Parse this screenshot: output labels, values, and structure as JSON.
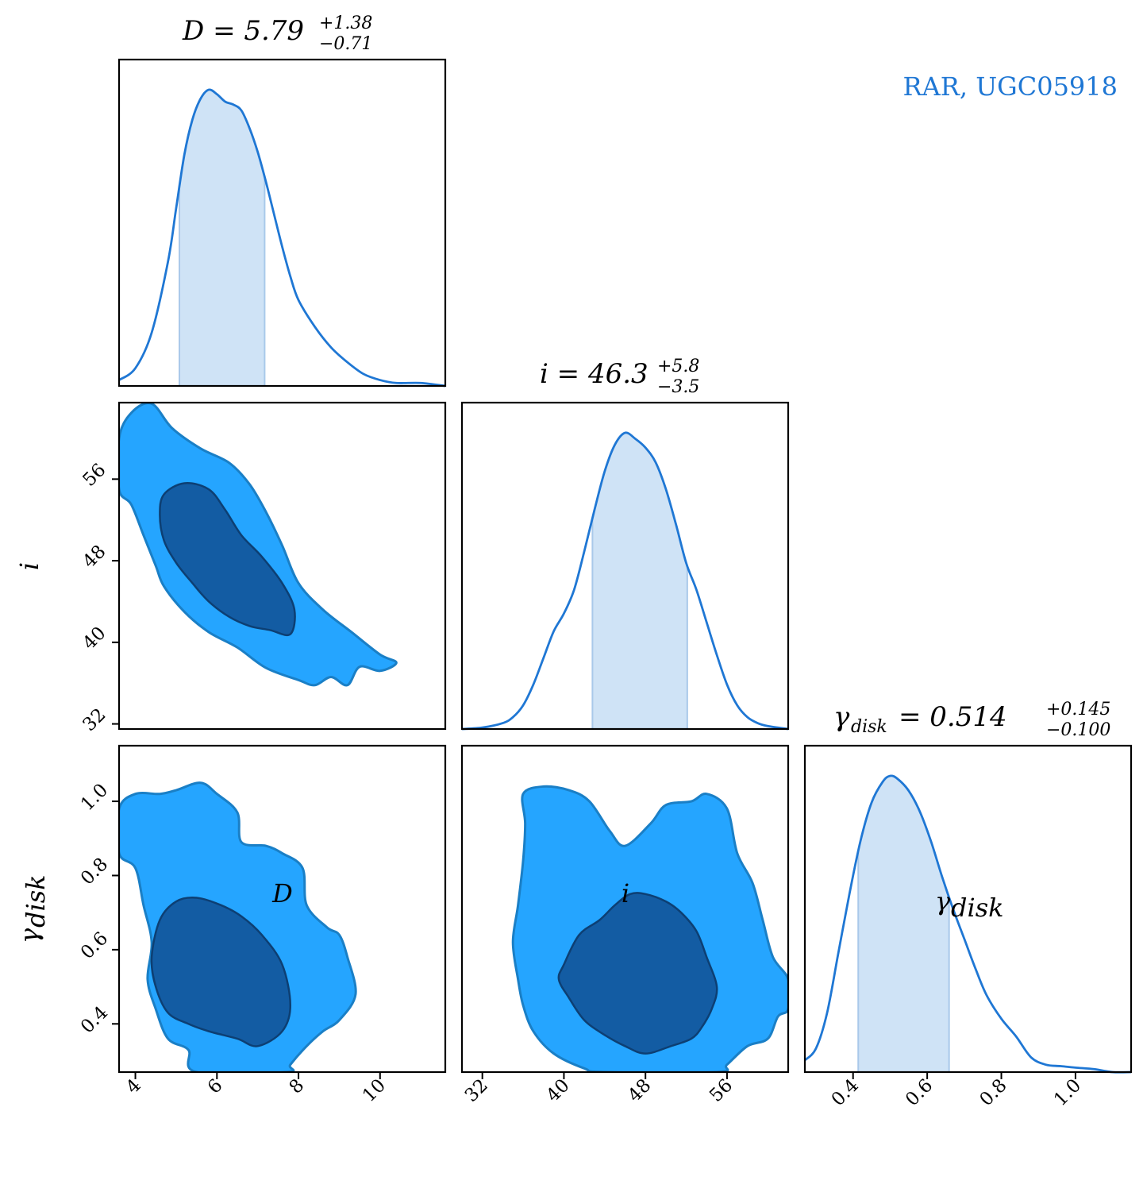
{
  "legend": {
    "text": "RAR, UGC05918",
    "color": "#1f77d4"
  },
  "colors": {
    "curve": "#1f77d4",
    "band": "#cfe3f6",
    "band_edge": "#a9c9ea",
    "contour_outer": "#25a5ff",
    "contour_inner": "#135ca3",
    "contour_outer_edge": "#1a7fc6",
    "contour_inner_edge": "#0d3f73"
  },
  "chart_data": [
    {
      "type": "line",
      "panel": "D-marginal",
      "title": {
        "main": "D = 5.79",
        "sup": "+1.38",
        "sub": "−0.71"
      },
      "xlim": [
        3.6,
        11.6
      ],
      "x": [
        3.6,
        4.0,
        4.4,
        4.8,
        5.0,
        5.2,
        5.4,
        5.6,
        5.8,
        6.0,
        6.2,
        6.4,
        6.6,
        6.8,
        7.0,
        7.2,
        7.4,
        7.6,
        7.8,
        8.0,
        8.4,
        8.8,
        9.2,
        9.6,
        10.0,
        10.4,
        11.0,
        11.6
      ],
      "y": [
        0.02,
        0.06,
        0.18,
        0.42,
        0.6,
        0.78,
        0.9,
        0.97,
        1.0,
        0.985,
        0.96,
        0.95,
        0.93,
        0.87,
        0.79,
        0.69,
        0.58,
        0.47,
        0.37,
        0.29,
        0.2,
        0.13,
        0.08,
        0.04,
        0.02,
        0.01,
        0.01,
        0.0
      ],
      "band": [
        5.08,
        7.17
      ],
      "xlabel": ""
    },
    {
      "type": "line",
      "panel": "i-marginal",
      "title": {
        "main": "i = 46.3",
        "sup": "+5.8",
        "sub": "−3.5"
      },
      "xlim": [
        30.0,
        62.0
      ],
      "x": [
        30,
        32,
        34,
        35,
        36,
        37,
        38,
        39,
        40,
        41,
        42,
        43,
        44,
        45,
        46,
        47,
        48,
        49,
        50,
        51,
        52,
        53,
        54,
        55,
        56,
        57,
        58,
        59,
        60,
        62
      ],
      "y": [
        0.0,
        0.005,
        0.02,
        0.04,
        0.08,
        0.15,
        0.24,
        0.33,
        0.39,
        0.47,
        0.6,
        0.74,
        0.87,
        0.96,
        1.0,
        0.98,
        0.95,
        0.9,
        0.81,
        0.69,
        0.56,
        0.47,
        0.36,
        0.25,
        0.15,
        0.08,
        0.04,
        0.02,
        0.01,
        0.0
      ],
      "band": [
        42.8,
        52.1
      ],
      "xlabel": ""
    },
    {
      "type": "line",
      "panel": "gamma-marginal",
      "title": {
        "main": "γ",
        "main_sub": "disk",
        "value": " = 0.514",
        "sup": "+0.145",
        "sub": "−0.100"
      },
      "xlim": [
        0.27,
        1.15
      ],
      "x": [
        0.27,
        0.3,
        0.33,
        0.36,
        0.39,
        0.42,
        0.45,
        0.48,
        0.5,
        0.52,
        0.55,
        0.58,
        0.61,
        0.64,
        0.67,
        0.7,
        0.73,
        0.76,
        0.8,
        0.84,
        0.88,
        0.92,
        0.96,
        1.0,
        1.05,
        1.1,
        1.15
      ],
      "y": [
        0.04,
        0.08,
        0.2,
        0.4,
        0.6,
        0.78,
        0.91,
        0.98,
        1.0,
        0.99,
        0.95,
        0.88,
        0.78,
        0.66,
        0.55,
        0.45,
        0.35,
        0.26,
        0.18,
        0.12,
        0.05,
        0.025,
        0.02,
        0.015,
        0.01,
        0.0,
        0.0
      ],
      "band": [
        0.414,
        0.659
      ],
      "xlabel": ""
    },
    {
      "type": "contour",
      "panel": "D-i",
      "xlim": [
        3.6,
        11.6
      ],
      "ylim": [
        31.5,
        63.5
      ],
      "outer": [
        [
          3.6,
          60.0
        ],
        [
          3.9,
          62.5
        ],
        [
          4.4,
          63.4
        ],
        [
          4.9,
          61.0
        ],
        [
          5.6,
          59.0
        ],
        [
          6.3,
          57.6
        ],
        [
          6.8,
          55.5
        ],
        [
          7.2,
          52.8
        ],
        [
          7.6,
          49.5
        ],
        [
          8.0,
          45.8
        ],
        [
          8.6,
          43.2
        ],
        [
          9.3,
          41.0
        ],
        [
          10.0,
          38.8
        ],
        [
          10.4,
          38.0
        ],
        [
          10.0,
          37.2
        ],
        [
          9.5,
          37.6
        ],
        [
          9.2,
          35.8
        ],
        [
          8.8,
          36.6
        ],
        [
          8.4,
          35.8
        ],
        [
          8.0,
          36.3
        ],
        [
          7.2,
          37.5
        ],
        [
          6.5,
          39.5
        ],
        [
          5.8,
          41.0
        ],
        [
          5.2,
          43.0
        ],
        [
          4.7,
          45.5
        ],
        [
          4.5,
          47.5
        ],
        [
          4.2,
          50.5
        ],
        [
          3.9,
          53.5
        ],
        [
          3.6,
          55.0
        ]
      ],
      "inner": [
        [
          4.7,
          54.5
        ],
        [
          5.2,
          55.6
        ],
        [
          5.8,
          55.0
        ],
        [
          6.2,
          53.0
        ],
        [
          6.6,
          50.5
        ],
        [
          7.1,
          48.4
        ],
        [
          7.6,
          45.8
        ],
        [
          7.9,
          43.2
        ],
        [
          7.8,
          40.8
        ],
        [
          7.3,
          41.2
        ],
        [
          6.8,
          41.6
        ],
        [
          6.3,
          42.5
        ],
        [
          5.8,
          44.0
        ],
        [
          5.4,
          45.8
        ],
        [
          5.0,
          47.8
        ],
        [
          4.7,
          50.0
        ],
        [
          4.6,
          52.5
        ]
      ],
      "xlabel": "",
      "ylabel": "i",
      "yticks": [
        32,
        40,
        48,
        56
      ]
    },
    {
      "type": "contour",
      "panel": "D-gamma",
      "xlim": [
        3.6,
        11.6
      ],
      "ylim": [
        0.27,
        1.15
      ],
      "outer": [
        [
          3.6,
          0.98
        ],
        [
          4.0,
          1.02
        ],
        [
          4.6,
          1.02
        ],
        [
          5.0,
          1.03
        ],
        [
          5.6,
          1.05
        ],
        [
          6.0,
          1.02
        ],
        [
          6.5,
          0.97
        ],
        [
          6.6,
          0.89
        ],
        [
          7.2,
          0.88
        ],
        [
          7.6,
          0.86
        ],
        [
          8.1,
          0.82
        ],
        [
          8.2,
          0.72
        ],
        [
          8.7,
          0.66
        ],
        [
          9.0,
          0.64
        ],
        [
          9.2,
          0.58
        ],
        [
          9.4,
          0.48
        ],
        [
          9.0,
          0.41
        ],
        [
          8.6,
          0.38
        ],
        [
          8.2,
          0.34
        ],
        [
          7.8,
          0.29
        ],
        [
          7.7,
          0.27
        ],
        [
          5.5,
          0.27
        ],
        [
          5.3,
          0.33
        ],
        [
          4.8,
          0.36
        ],
        [
          4.5,
          0.44
        ],
        [
          4.3,
          0.52
        ],
        [
          4.4,
          0.62
        ],
        [
          4.2,
          0.72
        ],
        [
          4.0,
          0.82
        ],
        [
          3.6,
          0.86
        ]
      ],
      "inner": [
        [
          4.6,
          0.68
        ],
        [
          5.0,
          0.73
        ],
        [
          5.5,
          0.74
        ],
        [
          6.1,
          0.72
        ],
        [
          6.6,
          0.69
        ],
        [
          7.1,
          0.64
        ],
        [
          7.6,
          0.56
        ],
        [
          7.8,
          0.45
        ],
        [
          7.6,
          0.38
        ],
        [
          7.0,
          0.34
        ],
        [
          6.5,
          0.36
        ],
        [
          5.8,
          0.38
        ],
        [
          5.3,
          0.4
        ],
        [
          4.8,
          0.43
        ],
        [
          4.5,
          0.5
        ],
        [
          4.4,
          0.58
        ]
      ],
      "xlabel": "D",
      "ylabel": "γdisk",
      "xticks": [
        4,
        6,
        8,
        10
      ],
      "yticks": [
        0.4,
        0.6,
        0.8,
        1.0
      ]
    },
    {
      "type": "contour",
      "panel": "i-gamma",
      "xlim": [
        30.0,
        62.0
      ],
      "ylim": [
        0.27,
        1.15
      ],
      "outer": [
        [
          36.0,
          1.02
        ],
        [
          38.0,
          1.04
        ],
        [
          40.5,
          1.03
        ],
        [
          42.5,
          1.0
        ],
        [
          44.5,
          0.92
        ],
        [
          46.0,
          0.88
        ],
        [
          48.5,
          0.94
        ],
        [
          50.0,
          0.99
        ],
        [
          52.5,
          1.0
        ],
        [
          54.0,
          1.02
        ],
        [
          56.0,
          0.98
        ],
        [
          57.0,
          0.86
        ],
        [
          58.5,
          0.78
        ],
        [
          59.5,
          0.68
        ],
        [
          60.5,
          0.58
        ],
        [
          62.0,
          0.52
        ],
        [
          62.0,
          0.44
        ],
        [
          61.0,
          0.42
        ],
        [
          60.0,
          0.36
        ],
        [
          58.0,
          0.34
        ],
        [
          56.0,
          0.29
        ],
        [
          55.0,
          0.27
        ],
        [
          44.0,
          0.27
        ],
        [
          42.0,
          0.28
        ],
        [
          39.0,
          0.32
        ],
        [
          37.0,
          0.38
        ],
        [
          36.0,
          0.45
        ],
        [
          35.5,
          0.52
        ],
        [
          35.0,
          0.62
        ],
        [
          35.5,
          0.72
        ],
        [
          36.0,
          0.84
        ],
        [
          36.2,
          0.94
        ]
      ],
      "inner": [
        [
          40.0,
          0.56
        ],
        [
          41.5,
          0.64
        ],
        [
          43.5,
          0.68
        ],
        [
          45.0,
          0.72
        ],
        [
          46.5,
          0.75
        ],
        [
          48.0,
          0.75
        ],
        [
          50.0,
          0.73
        ],
        [
          51.5,
          0.7
        ],
        [
          53.0,
          0.65
        ],
        [
          54.0,
          0.58
        ],
        [
          55.0,
          0.5
        ],
        [
          54.5,
          0.44
        ],
        [
          53.5,
          0.39
        ],
        [
          52.5,
          0.36
        ],
        [
          50.5,
          0.34
        ],
        [
          48.0,
          0.32
        ],
        [
          46.0,
          0.34
        ],
        [
          44.0,
          0.37
        ],
        [
          42.0,
          0.41
        ],
        [
          40.5,
          0.47
        ],
        [
          39.5,
          0.52
        ]
      ],
      "xlabel": "i",
      "ylabel": "",
      "xticks": [
        32,
        40,
        48,
        56
      ]
    },
    {
      "type": "line",
      "panel": "gamma-axis",
      "xlabel": "γdisk",
      "xticks": [
        0.4,
        0.6,
        0.8,
        1.0
      ]
    }
  ],
  "tick_text": {
    "D": [
      "4",
      "6",
      "8",
      "10"
    ],
    "i": [
      "32",
      "40",
      "48",
      "56"
    ],
    "gamma": [
      "0.4",
      "0.6",
      "0.8",
      "1.0"
    ]
  },
  "axis_text": {
    "D": "D",
    "i": "i",
    "gamma_main": "γ",
    "gamma_sub": "disk"
  }
}
